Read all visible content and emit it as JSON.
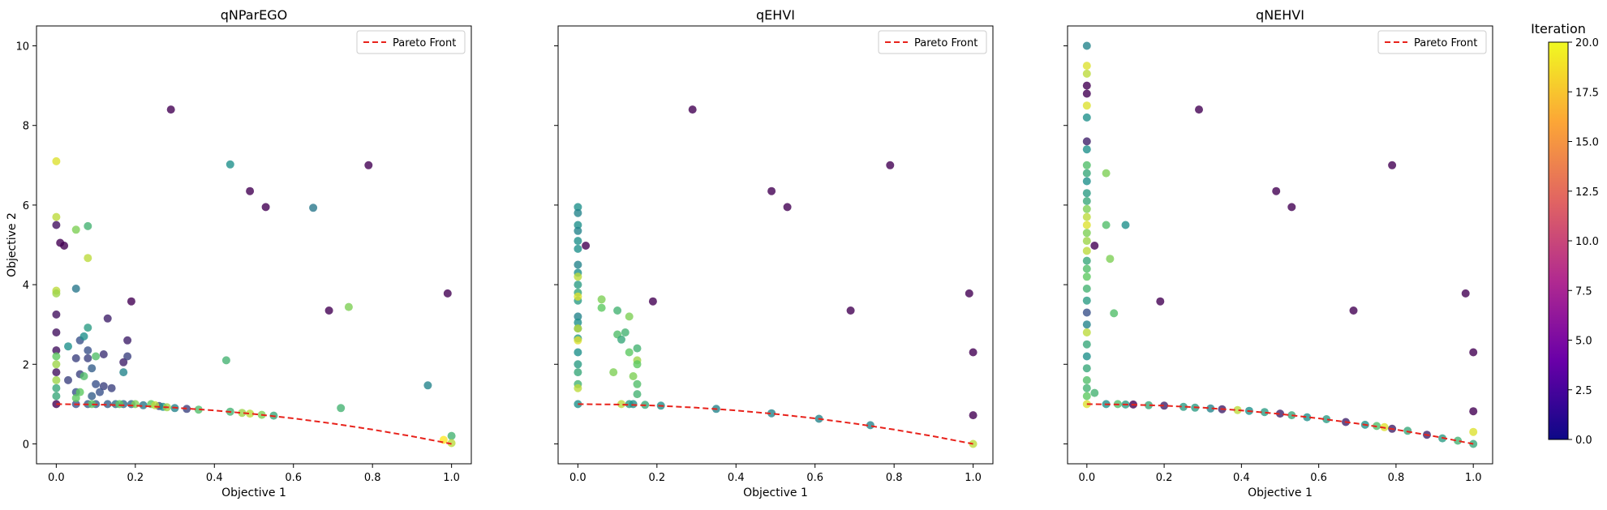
{
  "colors": {
    "pareto_line": "#e8221b",
    "colormap": [
      "#0d0887",
      "#6a00a8",
      "#b12a90",
      "#e16462",
      "#fca636",
      "#f0f921"
    ],
    "scatter_colormap": [
      "#440154",
      "#3b528b",
      "#21918c",
      "#5ec962",
      "#fde725"
    ]
  },
  "colorbar": {
    "title": "Iteration",
    "range": [
      0,
      20
    ],
    "ticks": [
      "0.0",
      "2.5",
      "5.0",
      "7.5",
      "10.0",
      "12.5",
      "15.0",
      "17.5",
      "20.0"
    ]
  },
  "chart_data": [
    {
      "type": "scatter",
      "title": "qNParEGO",
      "xlabel": "Objective 1",
      "ylabel": "Objective 2",
      "xlim": [
        -0.05,
        1.05
      ],
      "ylim": [
        -0.5,
        10.5
      ],
      "xticks": [
        "0.0",
        "0.2",
        "0.4",
        "0.6",
        "0.8",
        "1.0"
      ],
      "yticks": [
        "0",
        "2",
        "4",
        "6",
        "8",
        "10"
      ],
      "legend": {
        "label": "Pareto Front",
        "placement": "top-right"
      },
      "pareto_front": [
        [
          0,
          1.0
        ],
        [
          0.1,
          0.99
        ],
        [
          0.2,
          0.96
        ],
        [
          0.3,
          0.91
        ],
        [
          0.4,
          0.84
        ],
        [
          0.5,
          0.75
        ],
        [
          0.6,
          0.64
        ],
        [
          0.7,
          0.51
        ],
        [
          0.8,
          0.36
        ],
        [
          0.9,
          0.19
        ],
        [
          1.0,
          0.0
        ]
      ],
      "points": [
        [
          0.29,
          8.4,
          0
        ],
        [
          0.49,
          6.35,
          0
        ],
        [
          0.53,
          5.95,
          0
        ],
        [
          0.79,
          7.0,
          0
        ],
        [
          0.69,
          3.35,
          0
        ],
        [
          0.99,
          3.78,
          0
        ],
        [
          0.19,
          3.58,
          0
        ],
        [
          0.01,
          5.05,
          0
        ],
        [
          0.02,
          4.98,
          0
        ],
        [
          0.0,
          5.5,
          1
        ],
        [
          0.0,
          3.25,
          1
        ],
        [
          0.0,
          2.8,
          1
        ],
        [
          0.13,
          3.15,
          2
        ],
        [
          0.18,
          2.6,
          2
        ],
        [
          0.17,
          2.05,
          2
        ],
        [
          0.0,
          1.8,
          1
        ],
        [
          0.0,
          2.35,
          1
        ],
        [
          0.0,
          1.0,
          0
        ],
        [
          0.12,
          2.25,
          3
        ],
        [
          0.18,
          2.2,
          4
        ],
        [
          0.06,
          2.6,
          5
        ],
        [
          0.05,
          2.15,
          4
        ],
        [
          0.08,
          2.15,
          4
        ],
        [
          0.08,
          2.35,
          5
        ],
        [
          0.09,
          1.9,
          6
        ],
        [
          0.06,
          1.75,
          4
        ],
        [
          0.03,
          1.6,
          4
        ],
        [
          0.1,
          1.5,
          5
        ],
        [
          0.12,
          1.45,
          4
        ],
        [
          0.05,
          1.3,
          5
        ],
        [
          0.11,
          1.3,
          5
        ],
        [
          0.09,
          1.2,
          6
        ],
        [
          0.14,
          1.4,
          4
        ],
        [
          0.05,
          1.0,
          5
        ],
        [
          0.08,
          1.0,
          6
        ],
        [
          0.1,
          1.0,
          6
        ],
        [
          0.13,
          1.0,
          6
        ],
        [
          0.15,
          1.0,
          7
        ],
        [
          0.17,
          1.0,
          7
        ],
        [
          0.19,
          1.0,
          7
        ],
        [
          0.22,
          0.97,
          8
        ],
        [
          0.26,
          0.95,
          4
        ],
        [
          0.27,
          0.93,
          10
        ],
        [
          0.3,
          0.9,
          9
        ],
        [
          0.33,
          0.88,
          4
        ],
        [
          0.36,
          0.86,
          14
        ],
        [
          0.44,
          0.81,
          13
        ],
        [
          0.47,
          0.78,
          17
        ],
        [
          0.49,
          0.76,
          18
        ],
        [
          0.52,
          0.73,
          16
        ],
        [
          0.55,
          0.71,
          12
        ],
        [
          0.72,
          0.9,
          13
        ],
        [
          0.43,
          2.1,
          13
        ],
        [
          0.44,
          7.02,
          10
        ],
        [
          0.65,
          5.93,
          8
        ],
        [
          0.94,
          1.47,
          9
        ],
        [
          0.74,
          3.44,
          16
        ],
        [
          1.0,
          0.2,
          13
        ],
        [
          1.0,
          0.02,
          18
        ],
        [
          0.05,
          3.9,
          8
        ],
        [
          0.07,
          2.7,
          10
        ],
        [
          0.08,
          2.92,
          11
        ],
        [
          0.17,
          1.8,
          9
        ],
        [
          0.0,
          7.1,
          19
        ],
        [
          0.0,
          5.7,
          18
        ],
        [
          0.05,
          5.38,
          16
        ],
        [
          0.08,
          5.47,
          13
        ],
        [
          0.08,
          4.67,
          18
        ],
        [
          0.0,
          3.85,
          18
        ],
        [
          0.0,
          3.78,
          17
        ],
        [
          0.0,
          2.2,
          15
        ],
        [
          0.0,
          2.0,
          17
        ],
        [
          0.0,
          1.6,
          17
        ],
        [
          0.0,
          1.4,
          12
        ],
        [
          0.0,
          1.2,
          12
        ],
        [
          0.07,
          1.7,
          14
        ],
        [
          0.06,
          1.3,
          15
        ],
        [
          0.05,
          1.15,
          15
        ],
        [
          0.09,
          1.0,
          15
        ],
        [
          0.1,
          2.2,
          14
        ],
        [
          0.03,
          2.45,
          10
        ],
        [
          0.16,
          1.0,
          15
        ],
        [
          0.2,
          1.0,
          16
        ],
        [
          0.24,
          1.0,
          15
        ],
        [
          0.25,
          0.97,
          18
        ],
        [
          0.28,
          0.92,
          17
        ],
        [
          0.98,
          0.1,
          20
        ]
      ]
    },
    {
      "type": "scatter",
      "title": "qEHVI",
      "xlabel": "Objective 1",
      "ylabel": "",
      "xlim": [
        -0.05,
        1.05
      ],
      "ylim": [
        -0.5,
        10.5
      ],
      "xticks": [
        "0.0",
        "0.2",
        "0.4",
        "0.6",
        "0.8",
        "1.0"
      ],
      "yticks": [],
      "legend": {
        "label": "Pareto Front",
        "placement": "top-right"
      },
      "pareto_front": [
        [
          0,
          1.0
        ],
        [
          0.1,
          0.99
        ],
        [
          0.2,
          0.96
        ],
        [
          0.3,
          0.91
        ],
        [
          0.4,
          0.84
        ],
        [
          0.5,
          0.75
        ],
        [
          0.6,
          0.64
        ],
        [
          0.7,
          0.51
        ],
        [
          0.8,
          0.36
        ],
        [
          0.9,
          0.19
        ],
        [
          1.0,
          0.0
        ]
      ],
      "points": [
        [
          0.29,
          8.4,
          0
        ],
        [
          0.49,
          6.35,
          0
        ],
        [
          0.53,
          5.95,
          0
        ],
        [
          0.79,
          7.0,
          0
        ],
        [
          0.69,
          3.35,
          0
        ],
        [
          0.99,
          3.78,
          0
        ],
        [
          1.0,
          2.3,
          0
        ],
        [
          1.0,
          0.72,
          0
        ],
        [
          0.19,
          3.58,
          0
        ],
        [
          0.02,
          4.98,
          0
        ],
        [
          0.0,
          5.95,
          10
        ],
        [
          0.0,
          5.8,
          9
        ],
        [
          0.0,
          5.5,
          10
        ],
        [
          0.0,
          5.35,
          9
        ],
        [
          0.0,
          5.1,
          10
        ],
        [
          0.0,
          4.9,
          10
        ],
        [
          0.0,
          4.5,
          9
        ],
        [
          0.0,
          4.3,
          10
        ],
        [
          0.0,
          4.0,
          11
        ],
        [
          0.0,
          3.8,
          12
        ],
        [
          0.0,
          3.6,
          11
        ],
        [
          0.0,
          3.2,
          9
        ],
        [
          0.0,
          3.05,
          10
        ],
        [
          0.0,
          2.9,
          10
        ],
        [
          0.0,
          2.65,
          11
        ],
        [
          0.0,
          2.3,
          10
        ],
        [
          0.0,
          2.0,
          11
        ],
        [
          0.0,
          1.8,
          12
        ],
        [
          0.0,
          1.5,
          13
        ],
        [
          0.0,
          1.0,
          10
        ],
        [
          0.0,
          4.2,
          18
        ],
        [
          0.0,
          3.7,
          19
        ],
        [
          0.0,
          2.9,
          18
        ],
        [
          0.0,
          2.6,
          19
        ],
        [
          0.0,
          1.4,
          18
        ],
        [
          0.06,
          3.63,
          16
        ],
        [
          0.06,
          3.42,
          15
        ],
        [
          0.1,
          3.35,
          13
        ],
        [
          0.13,
          3.2,
          16
        ],
        [
          0.15,
          2.4,
          13
        ],
        [
          0.1,
          2.75,
          14
        ],
        [
          0.11,
          2.62,
          12
        ],
        [
          0.12,
          2.8,
          13
        ],
        [
          0.13,
          2.3,
          15
        ],
        [
          0.15,
          2.1,
          17
        ],
        [
          0.15,
          2.0,
          15
        ],
        [
          0.14,
          1.7,
          16
        ],
        [
          0.15,
          1.5,
          14
        ],
        [
          0.15,
          1.25,
          13
        ],
        [
          0.09,
          1.8,
          16
        ],
        [
          0.11,
          1.0,
          18
        ],
        [
          0.13,
          1.0,
          11
        ],
        [
          0.14,
          1.0,
          10
        ],
        [
          0.17,
          0.98,
          12
        ],
        [
          0.21,
          0.96,
          10
        ],
        [
          0.35,
          0.88,
          9
        ],
        [
          0.49,
          0.77,
          9
        ],
        [
          0.61,
          0.63,
          9
        ],
        [
          0.74,
          0.47,
          9
        ],
        [
          1.0,
          0.0,
          18
        ]
      ]
    },
    {
      "type": "scatter",
      "title": "qNEHVI",
      "xlabel": "Objective 1",
      "ylabel": "",
      "xlim": [
        -0.05,
        1.05
      ],
      "ylim": [
        -0.5,
        10.5
      ],
      "xticks": [
        "0.0",
        "0.2",
        "0.4",
        "0.6",
        "0.8",
        "1.0"
      ],
      "yticks": [],
      "legend": {
        "label": "Pareto Front",
        "placement": "top-right"
      },
      "pareto_front": [
        [
          0,
          1.0
        ],
        [
          0.1,
          0.99
        ],
        [
          0.2,
          0.96
        ],
        [
          0.3,
          0.91
        ],
        [
          0.4,
          0.84
        ],
        [
          0.5,
          0.75
        ],
        [
          0.6,
          0.64
        ],
        [
          0.7,
          0.51
        ],
        [
          0.8,
          0.36
        ],
        [
          0.9,
          0.19
        ],
        [
          1.0,
          0.0
        ]
      ],
      "points": [
        [
          0.29,
          8.4,
          0
        ],
        [
          0.49,
          6.35,
          0
        ],
        [
          0.53,
          5.95,
          0
        ],
        [
          0.79,
          7.0,
          0
        ],
        [
          0.69,
          3.35,
          0
        ],
        [
          0.98,
          3.78,
          0
        ],
        [
          1.0,
          2.3,
          0
        ],
        [
          1.0,
          0.82,
          0
        ],
        [
          0.19,
          3.58,
          0
        ],
        [
          0.02,
          4.98,
          0
        ],
        [
          0.0,
          10.0,
          9
        ],
        [
          0.0,
          9.0,
          0
        ],
        [
          0.0,
          8.8,
          0
        ],
        [
          0.0,
          8.2,
          10
        ],
        [
          0.0,
          7.6,
          2
        ],
        [
          0.0,
          7.4,
          10
        ],
        [
          0.0,
          7.0,
          14
        ],
        [
          0.0,
          6.8,
          12
        ],
        [
          0.0,
          6.6,
          10
        ],
        [
          0.0,
          6.3,
          11
        ],
        [
          0.0,
          6.1,
          12
        ],
        [
          0.0,
          5.9,
          16
        ],
        [
          0.0,
          5.7,
          18
        ],
        [
          0.0,
          5.5,
          19
        ],
        [
          0.0,
          5.3,
          16
        ],
        [
          0.0,
          5.1,
          17
        ],
        [
          0.0,
          4.85,
          18
        ],
        [
          0.0,
          4.6,
          12
        ],
        [
          0.0,
          4.4,
          14
        ],
        [
          0.0,
          4.2,
          15
        ],
        [
          0.0,
          3.9,
          13
        ],
        [
          0.0,
          3.6,
          11
        ],
        [
          0.0,
          3.3,
          5
        ],
        [
          0.0,
          3.0,
          9
        ],
        [
          0.0,
          2.8,
          18
        ],
        [
          0.0,
          2.5,
          12
        ],
        [
          0.0,
          2.2,
          10
        ],
        [
          0.0,
          1.9,
          12
        ],
        [
          0.0,
          1.6,
          14
        ],
        [
          0.0,
          1.4,
          13
        ],
        [
          0.0,
          1.2,
          15
        ],
        [
          0.0,
          1.0,
          19
        ],
        [
          0.0,
          9.5,
          19
        ],
        [
          0.0,
          9.3,
          18
        ],
        [
          0.0,
          8.5,
          19
        ],
        [
          0.05,
          6.8,
          16
        ],
        [
          0.05,
          5.5,
          14
        ],
        [
          0.06,
          4.65,
          16
        ],
        [
          0.07,
          3.28,
          14
        ],
        [
          0.1,
          5.5,
          10
        ],
        [
          0.02,
          1.28,
          13
        ],
        [
          0.05,
          1.0,
          10
        ],
        [
          0.08,
          1.0,
          14
        ],
        [
          0.1,
          0.99,
          11
        ],
        [
          0.12,
          0.99,
          0
        ],
        [
          0.16,
          0.97,
          12
        ],
        [
          0.2,
          0.96,
          2
        ],
        [
          0.25,
          0.93,
          11
        ],
        [
          0.28,
          0.91,
          11
        ],
        [
          0.32,
          0.89,
          9
        ],
        [
          0.35,
          0.87,
          2
        ],
        [
          0.39,
          0.85,
          18
        ],
        [
          0.42,
          0.83,
          10
        ],
        [
          0.46,
          0.8,
          11
        ],
        [
          0.5,
          0.76,
          2
        ],
        [
          0.53,
          0.72,
          12
        ],
        [
          0.57,
          0.67,
          10
        ],
        [
          0.62,
          0.62,
          11
        ],
        [
          0.67,
          0.55,
          2
        ],
        [
          0.72,
          0.48,
          10
        ],
        [
          0.75,
          0.45,
          14
        ],
        [
          0.77,
          0.42,
          19
        ],
        [
          0.79,
          0.38,
          2
        ],
        [
          0.83,
          0.33,
          12
        ],
        [
          0.88,
          0.23,
          2
        ],
        [
          0.92,
          0.14,
          11
        ],
        [
          0.96,
          0.08,
          13
        ],
        [
          1.0,
          0.3,
          19
        ],
        [
          1.0,
          0.0,
          12
        ]
      ]
    }
  ]
}
